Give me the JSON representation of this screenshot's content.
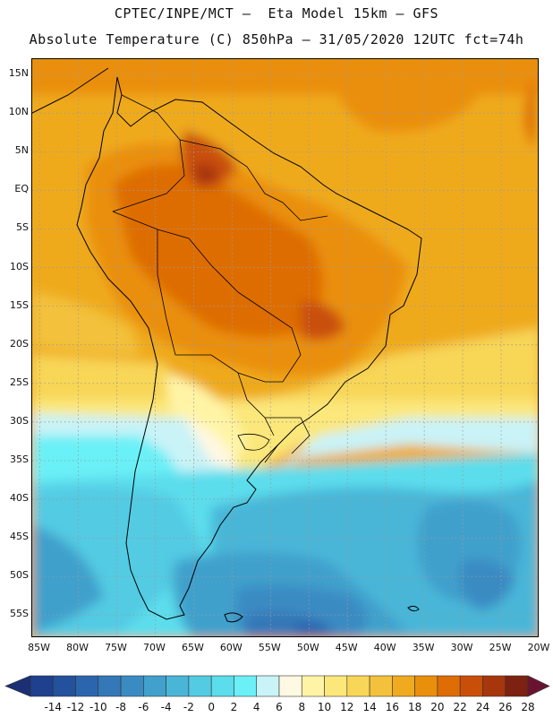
{
  "header": {
    "line1": "CPTEC/INPE/MCT –  Eta Model 15km – GFS",
    "line2": "Absolute Temperature (C) 850hPa – 31/05/2020 12UTC fct=74h"
  },
  "map": {
    "lat_labels": [
      "15N",
      "10N",
      "5N",
      "EQ",
      "5S",
      "10S",
      "15S",
      "20S",
      "25S",
      "30S",
      "35S",
      "40S",
      "45S",
      "50S",
      "55S"
    ],
    "lat_values": [
      15,
      10,
      5,
      0,
      -5,
      -10,
      -15,
      -20,
      -25,
      -30,
      -35,
      -40,
      -45,
      -50,
      -55
    ],
    "lon_labels": [
      "85W",
      "80W",
      "75W",
      "70W",
      "65W",
      "60W",
      "55W",
      "50W",
      "45W",
      "40W",
      "35W",
      "30W",
      "25W",
      "20W"
    ],
    "lon_values": [
      -85,
      -80,
      -75,
      -70,
      -65,
      -60,
      -55,
      -50,
      -45,
      -40,
      -35,
      -30,
      -25,
      -20
    ],
    "lat_range": [
      -58,
      17
    ],
    "lon_range": [
      -86,
      -20
    ],
    "grid": "dotted"
  },
  "colorbar": {
    "labels": [
      "-14",
      "-12",
      "-10",
      "-8",
      "-6",
      "-4",
      "-2",
      "0",
      "2",
      "4",
      "6",
      "8",
      "10",
      "12",
      "14",
      "16",
      "18",
      "20",
      "22",
      "24",
      "26",
      "28"
    ],
    "colors": [
      "#1f3f8f",
      "#24519c",
      "#2b65ad",
      "#3478b8",
      "#3b8bc3",
      "#41a0cc",
      "#49b6d8",
      "#52cbe3",
      "#5bddec",
      "#6bf0f7",
      "#c9f3f7",
      "#fff8e2",
      "#fff4a6",
      "#fbe77a",
      "#f8d657",
      "#f3c13b",
      "#efaa1f",
      "#ea8f0c",
      "#de6d06",
      "#c94f08",
      "#a8360c",
      "#7d2210"
    ],
    "under_color": "#1a2f74",
    "over_color": "#6a1330"
  }
}
